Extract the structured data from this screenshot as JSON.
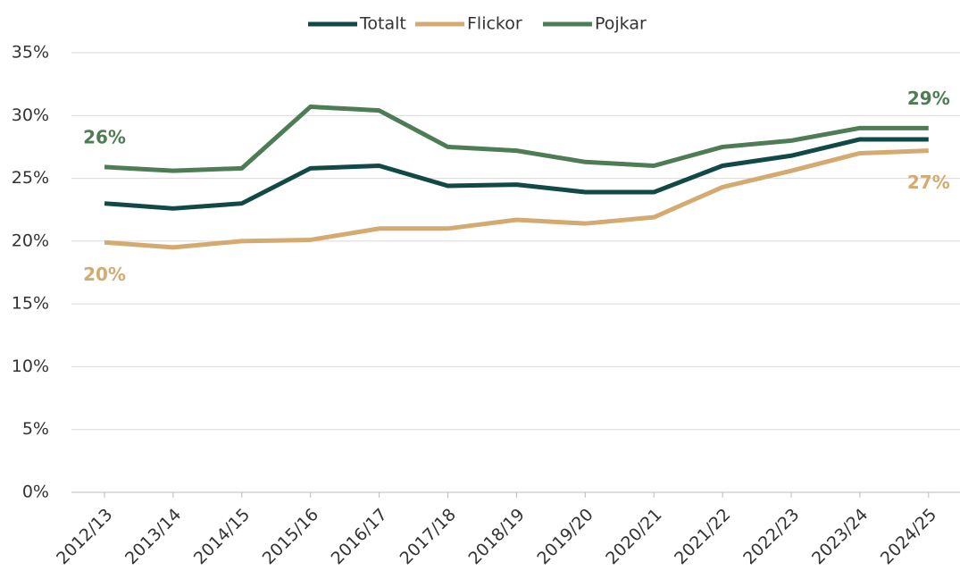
{
  "chart_data": {
    "type": "line",
    "categories": [
      "2012/13",
      "2013/14",
      "2014/15",
      "2015/16",
      "2016/17",
      "2017/18",
      "2018/19",
      "2019/20",
      "2020/21",
      "2021/22",
      "2022/23",
      "2023/24",
      "2024/25"
    ],
    "series": [
      {
        "name": "Totalt",
        "color": "#114a45",
        "values": [
          23.0,
          22.6,
          23.0,
          25.8,
          26.0,
          24.4,
          24.5,
          23.9,
          23.9,
          26.0,
          26.8,
          28.1,
          28.1
        ]
      },
      {
        "name": "Flickor",
        "color": "#d4aa70",
        "values": [
          19.9,
          19.5,
          20.0,
          20.1,
          21.0,
          21.0,
          21.7,
          21.4,
          21.9,
          24.3,
          25.6,
          27.0,
          27.2
        ],
        "value_labels": [
          "20%",
          null,
          null,
          null,
          null,
          null,
          null,
          null,
          null,
          null,
          null,
          null,
          "27%"
        ]
      },
      {
        "name": "Pojkar",
        "color": "#4e7d55",
        "values": [
          25.9,
          25.6,
          25.8,
          30.7,
          30.4,
          27.5,
          27.2,
          26.3,
          26.0,
          27.5,
          28.0,
          29.0,
          29.0
        ],
        "value_labels": [
          "26%",
          null,
          null,
          null,
          null,
          null,
          null,
          null,
          null,
          null,
          null,
          null,
          "29%"
        ]
      }
    ],
    "ylim": [
      0,
      35
    ],
    "yticks": [
      {
        "value": 0,
        "label": "0%"
      },
      {
        "value": 5,
        "label": "5%"
      },
      {
        "value": 10,
        "label": "10%"
      },
      {
        "value": 15,
        "label": "15%"
      },
      {
        "value": 20,
        "label": "20%"
      },
      {
        "value": 25,
        "label": "25%"
      },
      {
        "value": 30,
        "label": "30%"
      },
      {
        "value": 35,
        "label": "35%"
      }
    ],
    "grid": true,
    "legend": "top"
  }
}
